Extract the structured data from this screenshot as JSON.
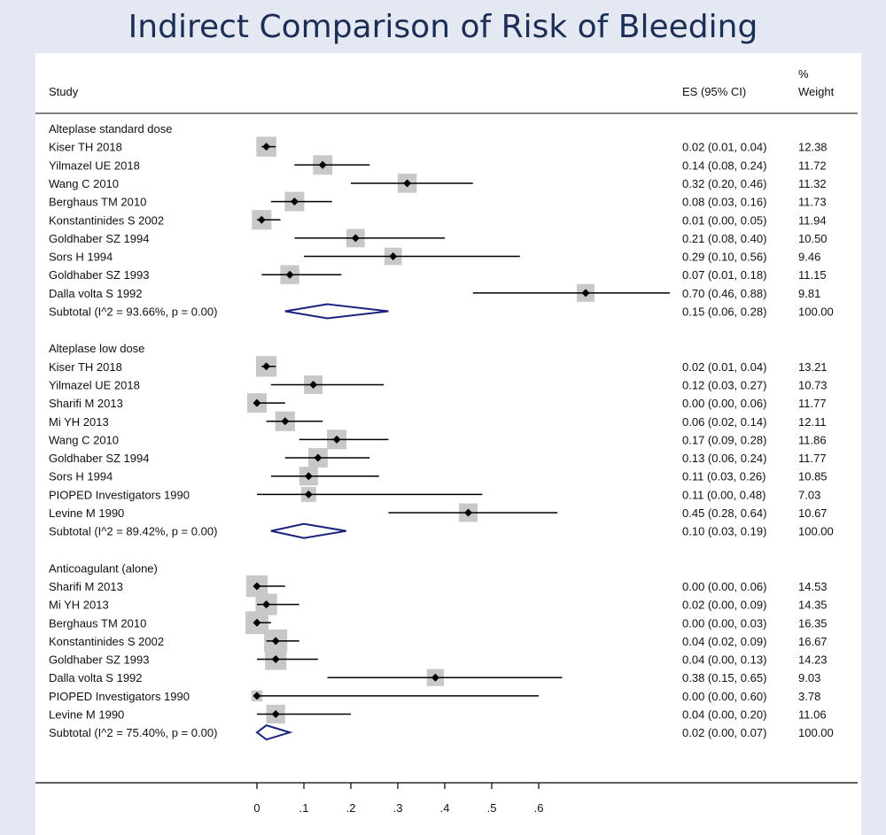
{
  "title": "Indirect Comparison of Risk of Bleeding",
  "headers": {
    "study": "Study",
    "es": "ES (95% CI)",
    "weight_pct": "%",
    "weight": "Weight"
  },
  "chart_data": {
    "type": "forest",
    "xlim": [
      0,
      0.7
    ],
    "xticks": [
      "0",
      ".1",
      ".2",
      ".3",
      ".4",
      ".5",
      ".6"
    ],
    "colors": {
      "diamond": "#1a237e",
      "marker": "#c8c8c8",
      "line": "#000000"
    },
    "groups": [
      {
        "label": "Alteplase standard dose",
        "studies": [
          {
            "study": "Kiser TH 2018",
            "es": 0.02,
            "lo": 0.01,
            "hi": 0.04,
            "text": "0.02 (0.01, 0.04)",
            "weight": "12.38"
          },
          {
            "study": "Yilmazel UE 2018",
            "es": 0.14,
            "lo": 0.08,
            "hi": 0.24,
            "text": "0.14 (0.08, 0.24)",
            "weight": "11.72"
          },
          {
            "study": "Wang C 2010",
            "es": 0.32,
            "lo": 0.2,
            "hi": 0.46,
            "text": "0.32 (0.20, 0.46)",
            "weight": "11.32"
          },
          {
            "study": "Berghaus TM 2010",
            "es": 0.08,
            "lo": 0.03,
            "hi": 0.16,
            "text": "0.08 (0.03, 0.16)",
            "weight": "11.73"
          },
          {
            "study": "Konstantinides S 2002",
            "es": 0.01,
            "lo": 0.0,
            "hi": 0.05,
            "text": "0.01 (0.00, 0.05)",
            "weight": "11.94"
          },
          {
            "study": "Goldhaber SZ 1994",
            "es": 0.21,
            "lo": 0.08,
            "hi": 0.4,
            "text": "0.21 (0.08, 0.40)",
            "weight": "10.50"
          },
          {
            "study": "Sors H 1994",
            "es": 0.29,
            "lo": 0.1,
            "hi": 0.56,
            "text": "0.29 (0.10, 0.56)",
            "weight": "9.46"
          },
          {
            "study": "Goldhaber SZ 1993",
            "es": 0.07,
            "lo": 0.01,
            "hi": 0.18,
            "text": "0.07 (0.01, 0.18)",
            "weight": "11.15"
          },
          {
            "study": "Dalla volta S 1992",
            "es": 0.7,
            "lo": 0.46,
            "hi": 0.88,
            "text": "0.70 (0.46, 0.88)",
            "weight": "9.81"
          }
        ],
        "subtotal": {
          "label": "Subtotal  (I^2 = 93.66%, p = 0.00)",
          "es": 0.15,
          "lo": 0.06,
          "hi": 0.28,
          "text": "0.15 (0.06, 0.28)",
          "weight": "100.00"
        }
      },
      {
        "label": "Alteplase low dose",
        "studies": [
          {
            "study": "Kiser TH 2018",
            "es": 0.02,
            "lo": 0.01,
            "hi": 0.04,
            "text": "0.02 (0.01, 0.04)",
            "weight": "13.21"
          },
          {
            "study": "Yilmazel UE 2018",
            "es": 0.12,
            "lo": 0.03,
            "hi": 0.27,
            "text": "0.12 (0.03, 0.27)",
            "weight": "10.73"
          },
          {
            "study": "Sharifi M 2013",
            "es": 0.0,
            "lo": 0.0,
            "hi": 0.06,
            "text": "0.00 (0.00, 0.06)",
            "weight": "11.77"
          },
          {
            "study": "Mi YH 2013",
            "es": 0.06,
            "lo": 0.02,
            "hi": 0.14,
            "text": "0.06 (0.02, 0.14)",
            "weight": "12.11"
          },
          {
            "study": "Wang C 2010",
            "es": 0.17,
            "lo": 0.09,
            "hi": 0.28,
            "text": "0.17 (0.09, 0.28)",
            "weight": "11.86"
          },
          {
            "study": "Goldhaber SZ 1994",
            "es": 0.13,
            "lo": 0.06,
            "hi": 0.24,
            "text": "0.13 (0.06, 0.24)",
            "weight": "11.77"
          },
          {
            "study": "Sors H 1994",
            "es": 0.11,
            "lo": 0.03,
            "hi": 0.26,
            "text": "0.11 (0.03, 0.26)",
            "weight": "10.85"
          },
          {
            "study": "PIOPED Investigators 1990",
            "es": 0.11,
            "lo": 0.0,
            "hi": 0.48,
            "text": "0.11 (0.00, 0.48)",
            "weight": "7.03"
          },
          {
            "study": "Levine M 1990",
            "es": 0.45,
            "lo": 0.28,
            "hi": 0.64,
            "text": "0.45 (0.28, 0.64)",
            "weight": "10.67"
          }
        ],
        "subtotal": {
          "label": "Subtotal  (I^2 = 89.42%, p = 0.00)",
          "es": 0.1,
          "lo": 0.03,
          "hi": 0.19,
          "text": "0.10 (0.03, 0.19)",
          "weight": "100.00"
        }
      },
      {
        "label": "Anticoagulant (alone)",
        "studies": [
          {
            "study": "Sharifi M 2013",
            "es": 0.0,
            "lo": 0.0,
            "hi": 0.06,
            "text": "0.00 (0.00, 0.06)",
            "weight": "14.53"
          },
          {
            "study": "Mi YH 2013",
            "es": 0.02,
            "lo": 0.0,
            "hi": 0.09,
            "text": "0.02 (0.00, 0.09)",
            "weight": "14.35"
          },
          {
            "study": "Berghaus TM 2010",
            "es": 0.0,
            "lo": 0.0,
            "hi": 0.03,
            "text": "0.00 (0.00, 0.03)",
            "weight": "16.35"
          },
          {
            "study": "Konstantinides S 2002",
            "es": 0.04,
            "lo": 0.02,
            "hi": 0.09,
            "text": "0.04 (0.02, 0.09)",
            "weight": "16.67"
          },
          {
            "study": "Goldhaber SZ 1993",
            "es": 0.04,
            "lo": 0.0,
            "hi": 0.13,
            "text": "0.04 (0.00, 0.13)",
            "weight": "14.23"
          },
          {
            "study": "Dalla volta S 1992",
            "es": 0.38,
            "lo": 0.15,
            "hi": 0.65,
            "text": "0.38 (0.15, 0.65)",
            "weight": "9.03"
          },
          {
            "study": "PIOPED Investigators 1990",
            "es": 0.0,
            "lo": 0.0,
            "hi": 0.6,
            "text": "0.00 (0.00, 0.60)",
            "weight": "3.78"
          },
          {
            "study": "Levine M 1990",
            "es": 0.04,
            "lo": 0.0,
            "hi": 0.2,
            "text": "0.04 (0.00, 0.20)",
            "weight": "11.06"
          }
        ],
        "subtotal": {
          "label": "Subtotal  (I^2 = 75.40%, p = 0.00)",
          "es": 0.02,
          "lo": 0.0,
          "hi": 0.07,
          "text": "0.02 (0.00, 0.07)",
          "weight": "100.00"
        }
      }
    ]
  }
}
